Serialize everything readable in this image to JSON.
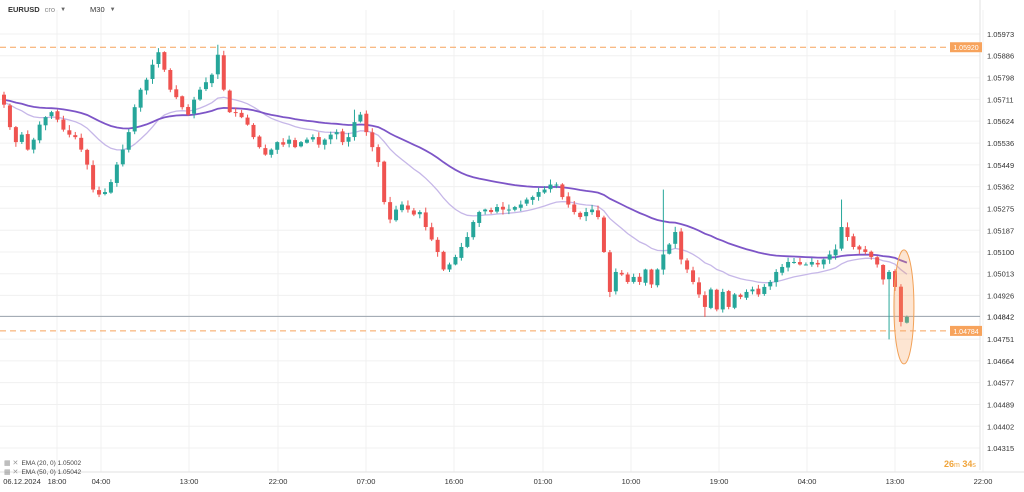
{
  "toolbar": {
    "symbol": "EURUSD",
    "type": "cro",
    "timeframe": "M30"
  },
  "legend": [
    "EMA (20, 0) 1.05002",
    "EMA (50, 0) 1.05042"
  ],
  "timer": {
    "minutes": "26",
    "m": "m",
    "seconds": "34",
    "s": "s"
  },
  "colors": {
    "up": "#26a69a",
    "down": "#ef5350",
    "ema20": "#c6b7e8",
    "ema50": "#7d55c7",
    "hline": "#f7a35c",
    "price": "#9aa3ad"
  },
  "chart_data": {
    "type": "candlestick",
    "symbol": "EURUSD",
    "timeframe": "M30",
    "y_ticks": [
      1.05973,
      1.05886,
      1.05798,
      1.05711,
      1.05624,
      1.05536,
      1.05449,
      1.05362,
      1.05275,
      1.05187,
      1.051,
      1.05013,
      1.04926,
      1.04842,
      1.04751,
      1.04664,
      1.04577,
      1.04489,
      1.04402,
      1.04315
    ],
    "x_ticks": [
      "06.12.2024",
      "18:00",
      "04:00",
      "13:00",
      "22:00",
      "07:00",
      "16:00",
      "01:00",
      "10:00",
      "19:00",
      "04:00",
      "13:00",
      "22:00"
    ],
    "ylim": [
      1.04315,
      1.05973
    ],
    "hlines": [
      {
        "value": 1.0592,
        "label": "1.05920"
      },
      {
        "value": 1.04784,
        "label": "1.04784"
      }
    ],
    "current_price": {
      "value": 1.04842,
      "label": "1.04842"
    },
    "closes": [
      1.0569,
      1.056,
      1.0554,
      1.0557,
      1.0551,
      1.0555,
      1.0561,
      1.0564,
      1.0566,
      1.0563,
      1.0559,
      1.0557,
      1.0556,
      1.0551,
      1.0545,
      1.0535,
      1.0533,
      1.0534,
      1.0538,
      1.0545,
      1.0551,
      1.0558,
      1.0568,
      1.0575,
      1.0579,
      1.0585,
      1.059,
      1.0583,
      1.0575,
      1.0572,
      1.0568,
      1.0565,
      1.0571,
      1.0575,
      1.0578,
      1.0581,
      1.0589,
      1.0575,
      1.0566,
      1.0566,
      1.0564,
      1.0561,
      1.0556,
      1.0552,
      1.0549,
      1.0551,
      1.0554,
      1.0553,
      1.0555,
      1.0552,
      1.0554,
      1.0555,
      1.0556,
      1.0553,
      1.0555,
      1.0557,
      1.0558,
      1.0554,
      1.0556,
      1.0562,
      1.0565,
      1.0558,
      1.0552,
      1.0546,
      1.053,
      1.0523,
      1.0527,
      1.0529,
      1.0527,
      1.0525,
      1.0526,
      1.052,
      1.0515,
      1.051,
      1.0503,
      1.0505,
      1.0508,
      1.0512,
      1.0516,
      1.0522,
      1.0526,
      1.0527,
      1.0526,
      1.0528,
      1.0527,
      1.0527,
      1.0528,
      1.0529,
      1.0531,
      1.0532,
      1.0534,
      1.0535,
      1.0537,
      1.0537,
      1.0532,
      1.0529,
      1.0526,
      1.0524,
      1.0526,
      1.0527,
      1.0524,
      1.051,
      1.0494,
      1.0502,
      1.0501,
      1.0498,
      1.05,
      1.0498,
      1.0503,
      1.0497,
      1.0503,
      1.0509,
      1.0513,
      1.0518,
      1.0507,
      1.0503,
      1.0498,
      1.0493,
      1.0488,
      1.0495,
      1.0487,
      1.0494,
      1.0488,
      1.0493,
      1.0492,
      1.0494,
      1.0495,
      1.0493,
      1.0496,
      1.0498,
      1.0502,
      1.0504,
      1.0506,
      1.0506,
      1.0505,
      1.0505,
      1.0506,
      1.0505,
      1.0507,
      1.0509,
      1.0511,
      1.052,
      1.0516,
      1.0512,
      1.0511,
      1.051,
      1.0508,
      1.0505,
      1.0499,
      1.0502,
      1.0496,
      1.0482,
      1.0484
    ]
  }
}
